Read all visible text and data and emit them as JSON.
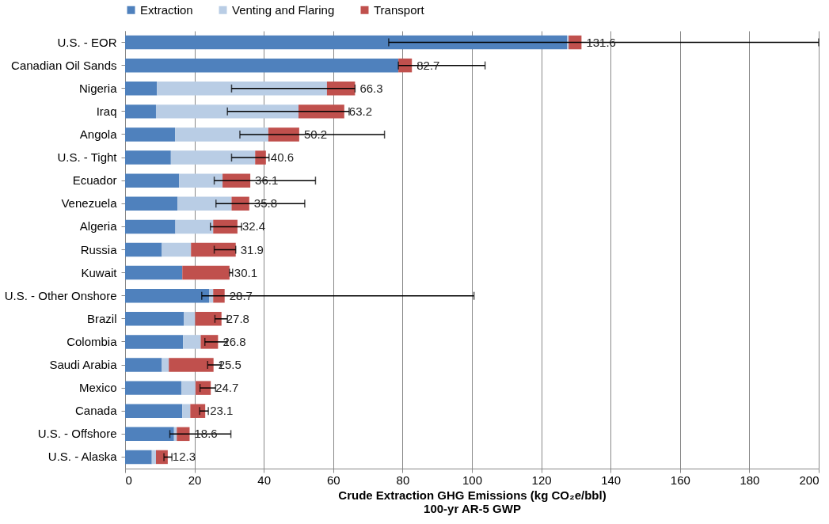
{
  "chart_data": {
    "type": "bar",
    "orientation": "horizontal",
    "stacked": true,
    "xlabel": "Crude Extraction GHG Emissions (kg CO₂e/bbl)\n100-yr AR-5 GWP",
    "categories": [
      "U.S. - EOR",
      "Canadian Oil Sands",
      "Nigeria",
      "Iraq",
      "Angola",
      "U.S. - Tight",
      "Ecuador",
      "Venezuela",
      "Algeria",
      "Russia",
      "Kuwait",
      "U.S. - Other Onshore",
      "Brazil",
      "Colombia",
      "Saudi Arabia",
      "Mexico",
      "Canada",
      "U.S. - Offshore",
      "U.S. - Alaska"
    ],
    "series": [
      {
        "name": "Extraction",
        "color": "#4f81bd",
        "values": [
          127.4,
          78.8,
          9.2,
          8.9,
          14.4,
          13.2,
          15.6,
          15.1,
          14.5,
          10.6,
          16.5,
          24.2,
          16.9,
          16.7,
          10.6,
          16.2,
          16.5,
          14.1,
          7.7
        ]
      },
      {
        "name": "Venting and Flaring",
        "color": "#b9cde5",
        "values": [
          0.5,
          null,
          49.0,
          41.1,
          26.9,
          24.3,
          12.5,
          15.6,
          10.9,
          8.4,
          null,
          1.2,
          3.3,
          5.1,
          2.0,
          4.1,
          2.3,
          0.8,
          1.2
        ]
      },
      {
        "name": "Transport",
        "color": "#c0504d",
        "values": [
          3.7,
          3.9,
          8.1,
          13.2,
          8.9,
          3.1,
          8.0,
          5.1,
          7.0,
          12.9,
          13.6,
          3.3,
          7.6,
          5.0,
          12.9,
          4.4,
          4.3,
          3.7,
          3.4
        ],
        "errors": [
          [
            76.0,
            200
          ],
          [
            78.8,
            103.8
          ],
          [
            30.7,
            66.3
          ],
          [
            29.5,
            64.6
          ],
          [
            33.1,
            74.8
          ],
          [
            30.7,
            41.5
          ],
          [
            25.7,
            54.9
          ],
          [
            26.2,
            51.8
          ],
          [
            24.6,
            33.6
          ],
          [
            25.7,
            31.9
          ],
          [
            30.1,
            31.0
          ],
          [
            22.1,
            100.6
          ],
          [
            25.9,
            29.5
          ],
          [
            23.0,
            29.4
          ],
          [
            23.8,
            27.7
          ],
          [
            21.6,
            26.1
          ],
          [
            21.5,
            24.0
          ],
          [
            12.9,
            30.5
          ],
          [
            11.2,
            13.5
          ]
        ]
      }
    ],
    "totals": [
      "131.6",
      "82.7",
      "66.3",
      "63.2",
      "50.2",
      "40.6",
      "36.1",
      "35.8",
      "32.4",
      "31.9",
      "30.1",
      "28.7",
      "27.8",
      "26.8",
      "25.5",
      "24.7",
      "23.1",
      "18.6",
      "12.3"
    ],
    "xlim": [
      0,
      200
    ],
    "xticks": [
      0,
      20,
      40,
      60,
      80,
      100,
      120,
      140,
      160,
      180,
      200
    ],
    "grid": "x",
    "legend": "top"
  }
}
